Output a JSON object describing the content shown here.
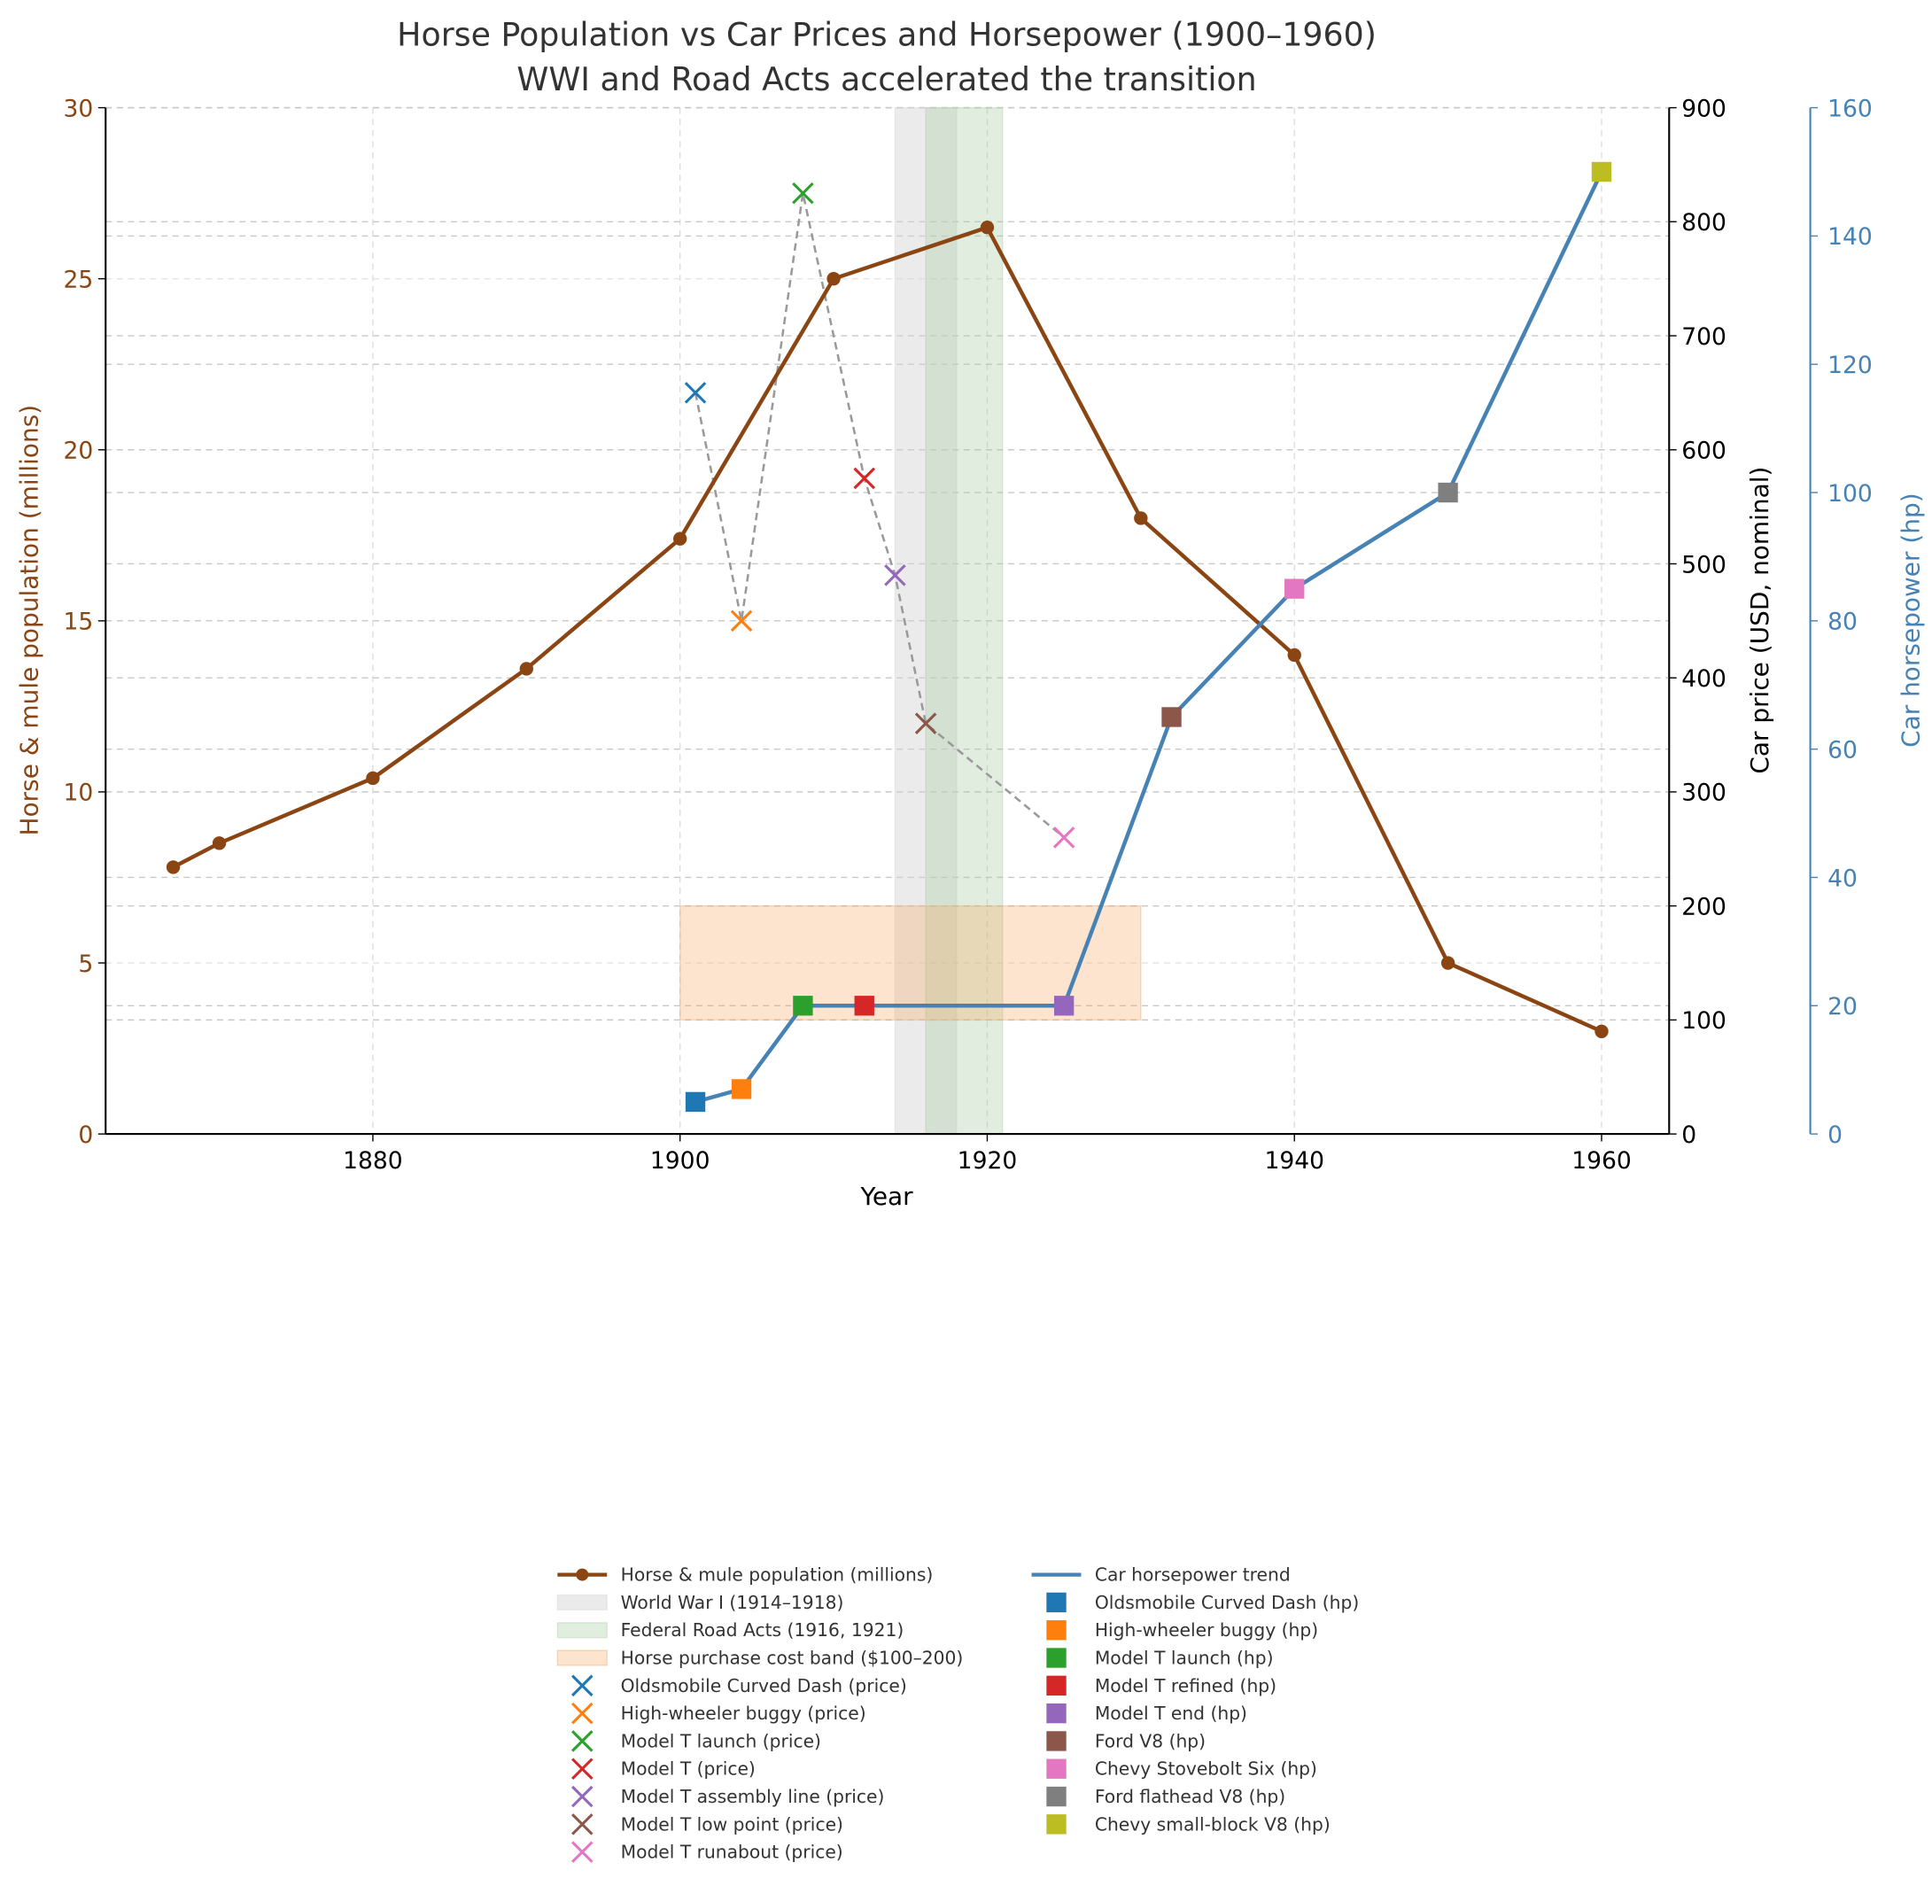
{
  "chart_data": {
    "type": "line",
    "title": "Horse Population vs Car Prices and Horsepower (1900–1960)",
    "subtitle": "WWI and Road Acts accelerated the transition",
    "xlabel": "Year",
    "xlim": [
      1862.6,
      1964.4
    ],
    "xticks": [
      1880,
      1900,
      1920,
      1940,
      1960
    ],
    "grid": true,
    "axes": {
      "left": {
        "label": "Horse & mule population (millions)",
        "ylim": [
          0,
          30
        ],
        "ticks": [
          0,
          5,
          10,
          15,
          20,
          25,
          30
        ],
        "color": "#8B4513"
      },
      "right1": {
        "label": "Car price (USD, nominal)",
        "ylim": [
          0,
          900
        ],
        "ticks": [
          0,
          100,
          200,
          300,
          400,
          500,
          600,
          700,
          800,
          900
        ],
        "color": "#000000"
      },
      "right2": {
        "label": "Car horsepower (hp)",
        "ylim": [
          0,
          160
        ],
        "ticks": [
          0,
          20,
          40,
          60,
          80,
          100,
          120,
          140,
          160
        ],
        "color": "#4682B4"
      }
    },
    "horse_series": {
      "name": "Horse & mule population (millions)",
      "color": "#8B4513",
      "x": [
        1867,
        1870,
        1880,
        1890,
        1900,
        1910,
        1920,
        1930,
        1940,
        1950,
        1960
      ],
      "y": [
        7.8,
        8.5,
        10.4,
        13.6,
        17.4,
        25.0,
        26.5,
        18.0,
        14.0,
        5.0,
        3.0
      ]
    },
    "spans": [
      {
        "name": "World War I (1914–1918)",
        "x0": 1914,
        "x1": 1918,
        "color": "#d3d3d3"
      },
      {
        "name": "Federal Road Acts (1916, 1921)",
        "x0": 1916,
        "x1": 1921,
        "color": "#a9cfa4"
      }
    ],
    "band": {
      "name": "Horse purchase cost band ($100–200)",
      "x0": 1900,
      "x1": 1930,
      "y0": 100,
      "y1": 200,
      "color": "#f4a460"
    },
    "prices": [
      {
        "name": "Oldsmobile Curved Dash (price)",
        "x": 1901,
        "y": 650,
        "color": "#1f77b4"
      },
      {
        "name": "High-wheeler buggy (price)",
        "x": 1904,
        "y": 450,
        "color": "#ff7f0e"
      },
      {
        "name": "Model T launch (price)",
        "x": 1908,
        "y": 825,
        "color": "#2ca02c"
      },
      {
        "name": "Model T (price)",
        "x": 1912,
        "y": 575,
        "color": "#d62728"
      },
      {
        "name": "Model T assembly line (price)",
        "x": 1914,
        "y": 490,
        "color": "#9467bd"
      },
      {
        "name": "Model T low point (price)",
        "x": 1916,
        "y": 360,
        "color": "#8c564b"
      },
      {
        "name": "Model T runabout (price)",
        "x": 1925,
        "y": 260,
        "color": "#e377c2"
      }
    ],
    "hp_trend_name": "Car horsepower trend",
    "hp_trend_color": "#4682B4",
    "hp": [
      {
        "name": "Oldsmobile Curved Dash (hp)",
        "x": 1901,
        "y": 5,
        "color": "#1f77b4"
      },
      {
        "name": "High-wheeler buggy (hp)",
        "x": 1904,
        "y": 7,
        "color": "#ff7f0e"
      },
      {
        "name": "Model T launch (hp)",
        "x": 1908,
        "y": 20,
        "color": "#2ca02c"
      },
      {
        "name": "Model T refined (hp)",
        "x": 1912,
        "y": 20,
        "color": "#d62728"
      },
      {
        "name": "Model T end (hp)",
        "x": 1925,
        "y": 20,
        "color": "#9467bd"
      },
      {
        "name": "Ford V8 (hp)",
        "x": 1932,
        "y": 65,
        "color": "#8c564b"
      },
      {
        "name": "Chevy Stovebolt Six (hp)",
        "x": 1940,
        "y": 85,
        "color": "#e377c2"
      },
      {
        "name": "Ford flathead V8 (hp)",
        "x": 1950,
        "y": 100,
        "color": "#7f7f7f"
      },
      {
        "name": "Chevy small-block V8 (hp)",
        "x": 1960,
        "y": 150,
        "color": "#bcbd22"
      }
    ],
    "legend_position": "bottom-center"
  }
}
